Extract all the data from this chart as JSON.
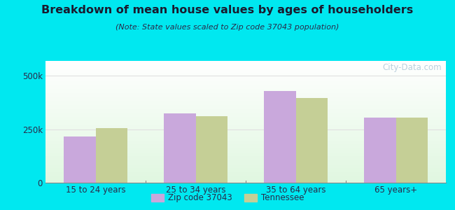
{
  "title": "Breakdown of mean house values by ages of householders",
  "subtitle": "(Note: State values scaled to Zip code 37043 population)",
  "categories": [
    "15 to 24 years",
    "25 to 34 years",
    "35 to 64 years",
    "65 years+"
  ],
  "zip_values": [
    215000,
    325000,
    430000,
    305000
  ],
  "state_values": [
    255000,
    310000,
    395000,
    305000
  ],
  "ylim": [
    0,
    570000
  ],
  "ytick_vals": [
    0,
    250000,
    500000
  ],
  "ytick_labels": [
    "0",
    "250k",
    "500k"
  ],
  "bar_color_zip": "#c9a8dc",
  "bar_color_state": "#c5cf96",
  "background_outer": "#00e8f0",
  "legend_zip": "Zip code 37043",
  "legend_state": "Tennessee",
  "bar_width": 0.32,
  "watermark": "City-Data.com",
  "title_color": "#1a1a2e",
  "subtitle_color": "#2a2a4a",
  "tick_color": "#2a2a4a",
  "grid_color": "#e0e0e0"
}
